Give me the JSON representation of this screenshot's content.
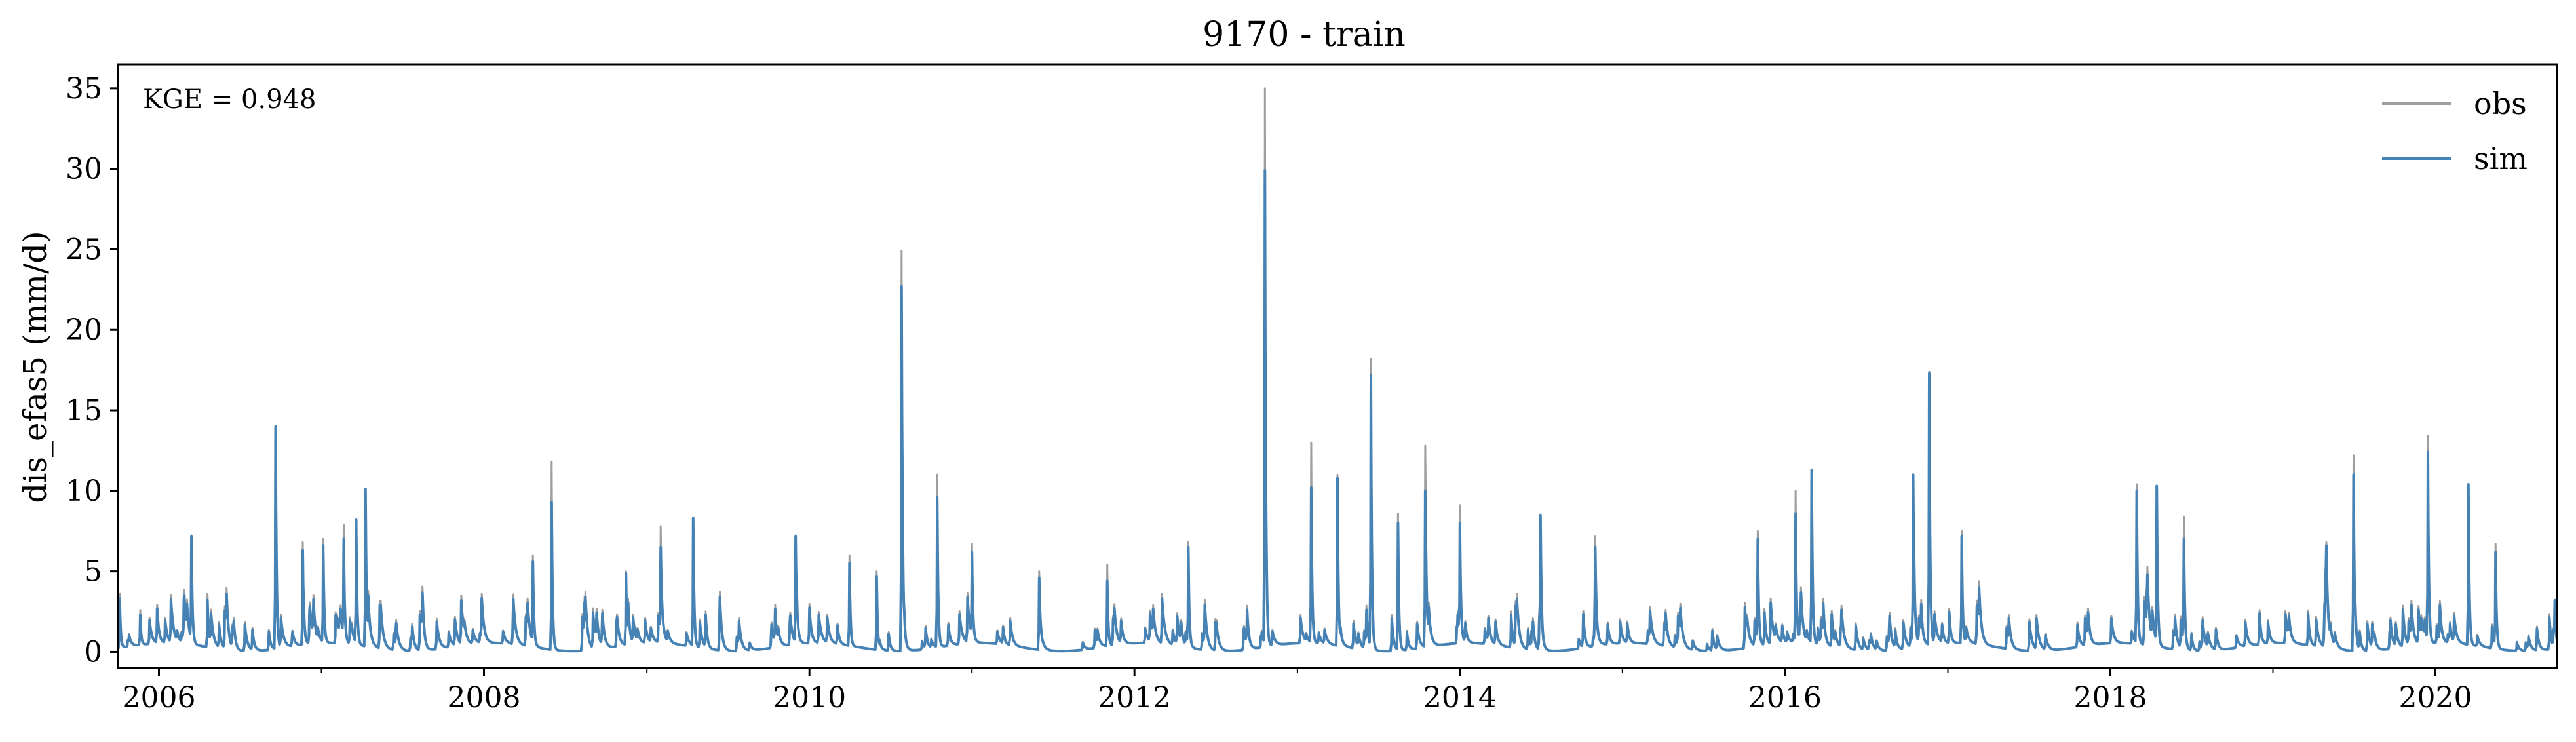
{
  "chart_data": {
    "type": "line",
    "title": "9170 - train",
    "xlabel": "",
    "ylabel": "dis_efas5 (mm/d)",
    "annotation": "KGE = 0.948",
    "x_range": [
      "2005-10-01",
      "2020-09-30"
    ],
    "ylim": [
      -1,
      36.5
    ],
    "yticks": [
      0,
      5,
      10,
      15,
      20,
      25,
      30,
      35
    ],
    "xticks": [
      "2006",
      "2008",
      "2010",
      "2012",
      "2014",
      "2016",
      "2018",
      "2020"
    ],
    "grid": false,
    "legend_position": "top-right",
    "series": [
      {
        "name": "obs",
        "color": "#9e9e9e",
        "peaks": [
          {
            "x": "2005-10-05",
            "y": 3.6
          },
          {
            "x": "2005-11-20",
            "y": 2.6
          },
          {
            "x": "2006-03-15",
            "y": 7.2
          },
          {
            "x": "2006-04-20",
            "y": 3.6
          },
          {
            "x": "2006-09-20",
            "y": 14.0
          },
          {
            "x": "2006-11-20",
            "y": 6.8
          },
          {
            "x": "2007-01-05",
            "y": 7.0
          },
          {
            "x": "2007-02-20",
            "y": 7.9
          },
          {
            "x": "2007-03-20",
            "y": 8.2
          },
          {
            "x": "2007-04-10",
            "y": 10.0
          },
          {
            "x": "2008-04-20",
            "y": 6.0
          },
          {
            "x": "2008-06-01",
            "y": 11.8
          },
          {
            "x": "2008-11-15",
            "y": 5.0
          },
          {
            "x": "2009-02-01",
            "y": 7.8
          },
          {
            "x": "2009-04-15",
            "y": 8.3
          },
          {
            "x": "2009-12-01",
            "y": 7.2
          },
          {
            "x": "2010-04-01",
            "y": 6.0
          },
          {
            "x": "2010-06-01",
            "y": 5.0
          },
          {
            "x": "2010-07-27",
            "y": 24.9
          },
          {
            "x": "2010-10-15",
            "y": 11.0
          },
          {
            "x": "2011-01-01",
            "y": 6.7
          },
          {
            "x": "2011-06-01",
            "y": 5.0
          },
          {
            "x": "2011-11-01",
            "y": 5.4
          },
          {
            "x": "2012-05-01",
            "y": 6.8
          },
          {
            "x": "2012-10-20",
            "y": 35.0
          },
          {
            "x": "2013-02-01",
            "y": 13.0
          },
          {
            "x": "2013-04-01",
            "y": 11.0
          },
          {
            "x": "2013-06-15",
            "y": 18.2
          },
          {
            "x": "2013-08-15",
            "y": 8.6
          },
          {
            "x": "2013-10-15",
            "y": 12.8
          },
          {
            "x": "2014-01-01",
            "y": 9.1
          },
          {
            "x": "2014-07-01",
            "y": 8.5
          },
          {
            "x": "2014-11-01",
            "y": 7.2
          },
          {
            "x": "2015-11-01",
            "y": 7.5
          },
          {
            "x": "2016-01-25",
            "y": 10.0
          },
          {
            "x": "2016-03-01",
            "y": 11.3
          },
          {
            "x": "2016-10-15",
            "y": 11.0
          },
          {
            "x": "2016-11-20",
            "y": 17.4
          },
          {
            "x": "2017-02-01",
            "y": 7.5
          },
          {
            "x": "2018-03-01",
            "y": 10.4
          },
          {
            "x": "2018-04-15",
            "y": 10.3
          },
          {
            "x": "2018-06-15",
            "y": 8.4
          },
          {
            "x": "2019-05-01",
            "y": 6.8
          },
          {
            "x": "2019-07-01",
            "y": 12.2
          },
          {
            "x": "2019-12-15",
            "y": 13.4
          },
          {
            "x": "2020-03-15",
            "y": 10.4
          },
          {
            "x": "2020-05-15",
            "y": 6.7
          },
          {
            "x": "2020-09-25",
            "y": 2.5
          }
        ]
      },
      {
        "name": "sim",
        "color": "#4682b4",
        "peaks": [
          {
            "x": "2005-10-05",
            "y": 3.3
          },
          {
            "x": "2005-11-20",
            "y": 2.3
          },
          {
            "x": "2006-03-15",
            "y": 7.2
          },
          {
            "x": "2006-04-20",
            "y": 3.2
          },
          {
            "x": "2006-09-20",
            "y": 14.0
          },
          {
            "x": "2006-11-20",
            "y": 6.3
          },
          {
            "x": "2007-01-05",
            "y": 6.6
          },
          {
            "x": "2007-02-20",
            "y": 7.0
          },
          {
            "x": "2007-03-20",
            "y": 8.2
          },
          {
            "x": "2007-04-10",
            "y": 10.1
          },
          {
            "x": "2008-04-20",
            "y": 5.6
          },
          {
            "x": "2008-06-01",
            "y": 9.3
          },
          {
            "x": "2008-11-15",
            "y": 4.9
          },
          {
            "x": "2009-02-01",
            "y": 6.5
          },
          {
            "x": "2009-04-15",
            "y": 8.3
          },
          {
            "x": "2009-12-01",
            "y": 7.2
          },
          {
            "x": "2010-04-01",
            "y": 5.5
          },
          {
            "x": "2010-06-01",
            "y": 4.7
          },
          {
            "x": "2010-07-27",
            "y": 22.7
          },
          {
            "x": "2010-10-15",
            "y": 9.6
          },
          {
            "x": "2011-01-01",
            "y": 6.2
          },
          {
            "x": "2011-06-01",
            "y": 4.6
          },
          {
            "x": "2011-11-01",
            "y": 4.4
          },
          {
            "x": "2012-05-01",
            "y": 6.5
          },
          {
            "x": "2012-10-20",
            "y": 29.9
          },
          {
            "x": "2013-02-01",
            "y": 10.2
          },
          {
            "x": "2013-04-01",
            "y": 10.8
          },
          {
            "x": "2013-06-15",
            "y": 17.2
          },
          {
            "x": "2013-08-15",
            "y": 8.0
          },
          {
            "x": "2013-10-15",
            "y": 10.0
          },
          {
            "x": "2014-01-01",
            "y": 8.0
          },
          {
            "x": "2014-07-01",
            "y": 8.5
          },
          {
            "x": "2014-11-01",
            "y": 6.5
          },
          {
            "x": "2015-11-01",
            "y": 7.0
          },
          {
            "x": "2016-01-25",
            "y": 8.6
          },
          {
            "x": "2016-03-01",
            "y": 11.3
          },
          {
            "x": "2016-10-15",
            "y": 11.0
          },
          {
            "x": "2016-11-20",
            "y": 17.3
          },
          {
            "x": "2017-02-01",
            "y": 7.2
          },
          {
            "x": "2018-03-01",
            "y": 10.0
          },
          {
            "x": "2018-04-15",
            "y": 10.3
          },
          {
            "x": "2018-06-15",
            "y": 7.0
          },
          {
            "x": "2019-05-01",
            "y": 6.6
          },
          {
            "x": "2019-07-01",
            "y": 11.0
          },
          {
            "x": "2019-12-15",
            "y": 12.4
          },
          {
            "x": "2020-03-15",
            "y": 10.4
          },
          {
            "x": "2020-05-15",
            "y": 6.2
          },
          {
            "x": "2020-09-25",
            "y": 3.2
          }
        ]
      }
    ]
  }
}
